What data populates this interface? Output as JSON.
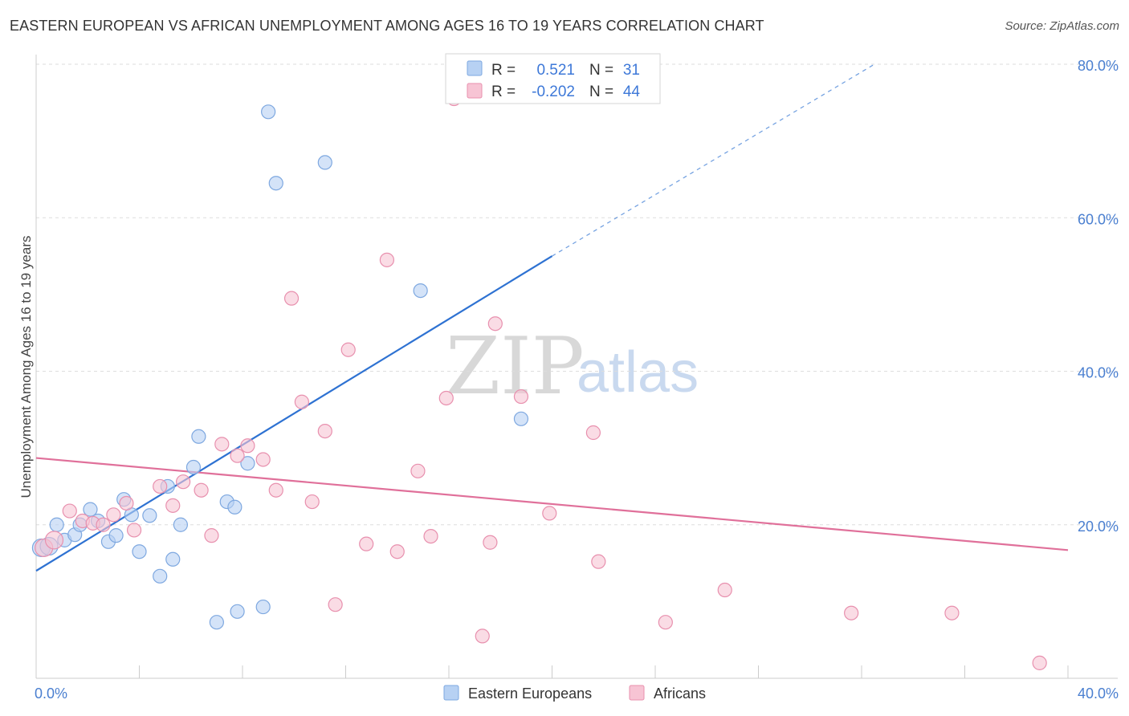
{
  "title": "EASTERN EUROPEAN VS AFRICAN UNEMPLOYMENT AMONG AGES 16 TO 19 YEARS CORRELATION CHART",
  "source": "Source: ZipAtlas.com",
  "watermark": {
    "zip": "ZIP",
    "atlas": "atlas"
  },
  "colors": {
    "blue_fill": "#b7d1f3",
    "blue_stroke": "#7ea8e0",
    "blue_line": "#2e72d2",
    "pink_fill": "#f7c4d4",
    "pink_stroke": "#e890ae",
    "pink_line": "#e0709a",
    "grid": "#dddddd",
    "tick_text": "#4a7fd0"
  },
  "legend": {
    "r_label": "R =",
    "n_label": "N =",
    "entries": [
      {
        "r": "0.521",
        "n": "31"
      },
      {
        "r": "-0.202",
        "n": "44"
      }
    ]
  },
  "chart_data": {
    "type": "scatter",
    "title": "EASTERN EUROPEAN VS AFRICAN UNEMPLOYMENT AMONG AGES 16 TO 19 YEARS CORRELATION CHART",
    "xlabel": "",
    "ylabel": "Unemployment Among Ages 16 to 19 years",
    "xlim": [
      0,
      40
    ],
    "ylim": [
      0,
      80
    ],
    "x_tick_labels": [
      "0.0%",
      "40.0%"
    ],
    "y_ticks": [
      20,
      40,
      60,
      80
    ],
    "y_tick_labels": [
      "20.0%",
      "40.0%",
      "60.0%",
      "80.0%"
    ],
    "grid": true,
    "legend_position": "top-center",
    "series": [
      {
        "name": "Eastern Europeans",
        "r": 0.521,
        "n": 31,
        "trend": {
          "x0": 0,
          "y0": 14,
          "x1": 20,
          "y1": 55,
          "dash_to_x": 32.5,
          "dash_to_y": 80
        },
        "points": [
          [
            0.2,
            17.0
          ],
          [
            0.5,
            17.2
          ],
          [
            0.8,
            20.0
          ],
          [
            1.1,
            18.0
          ],
          [
            1.5,
            18.7
          ],
          [
            1.7,
            20.0
          ],
          [
            2.1,
            22.0
          ],
          [
            2.4,
            20.5
          ],
          [
            2.8,
            17.8
          ],
          [
            3.1,
            18.6
          ],
          [
            3.4,
            23.3
          ],
          [
            3.7,
            21.3
          ],
          [
            4.0,
            16.5
          ],
          [
            4.4,
            21.2
          ],
          [
            4.8,
            13.3
          ],
          [
            5.1,
            25.0
          ],
          [
            5.3,
            15.5
          ],
          [
            5.6,
            20.0
          ],
          [
            6.1,
            27.5
          ],
          [
            6.3,
            31.5
          ],
          [
            7.0,
            7.3
          ],
          [
            7.4,
            23.0
          ],
          [
            7.7,
            22.3
          ],
          [
            7.8,
            8.7
          ],
          [
            8.2,
            28.0
          ],
          [
            8.8,
            9.3
          ],
          [
            9.0,
            73.8
          ],
          [
            9.3,
            64.5
          ],
          [
            11.2,
            67.2
          ],
          [
            14.9,
            50.5
          ],
          [
            18.8,
            33.8
          ]
        ]
      },
      {
        "name": "Africans",
        "r": -0.202,
        "n": 44,
        "trend": {
          "x0": 0,
          "y0": 28.7,
          "x1": 40,
          "y1": 16.7
        },
        "points": [
          [
            0.3,
            17.0
          ],
          [
            0.7,
            18.0
          ],
          [
            1.3,
            21.8
          ],
          [
            1.8,
            20.5
          ],
          [
            2.2,
            20.2
          ],
          [
            2.6,
            20.0
          ],
          [
            3.0,
            21.3
          ],
          [
            3.5,
            22.8
          ],
          [
            3.8,
            19.3
          ],
          [
            4.8,
            25.0
          ],
          [
            5.3,
            22.5
          ],
          [
            5.7,
            25.6
          ],
          [
            6.4,
            24.5
          ],
          [
            6.8,
            18.6
          ],
          [
            7.2,
            30.5
          ],
          [
            7.8,
            29.0
          ],
          [
            8.2,
            30.3
          ],
          [
            8.8,
            28.5
          ],
          [
            9.3,
            24.5
          ],
          [
            9.9,
            49.5
          ],
          [
            10.3,
            36.0
          ],
          [
            10.7,
            23.0
          ],
          [
            11.2,
            32.2
          ],
          [
            11.6,
            9.6
          ],
          [
            12.1,
            42.8
          ],
          [
            12.8,
            17.5
          ],
          [
            13.6,
            54.5
          ],
          [
            14.0,
            16.5
          ],
          [
            14.8,
            27.0
          ],
          [
            15.3,
            18.5
          ],
          [
            15.9,
            36.5
          ],
          [
            16.2,
            75.5
          ],
          [
            17.3,
            5.5
          ],
          [
            17.6,
            17.7
          ],
          [
            17.8,
            46.2
          ],
          [
            18.8,
            36.7
          ],
          [
            19.9,
            21.5
          ],
          [
            21.6,
            32.0
          ],
          [
            21.8,
            15.2
          ],
          [
            24.4,
            7.3
          ],
          [
            26.7,
            11.5
          ],
          [
            31.6,
            8.5
          ],
          [
            35.5,
            8.5
          ],
          [
            38.9,
            2.0
          ]
        ]
      }
    ]
  }
}
